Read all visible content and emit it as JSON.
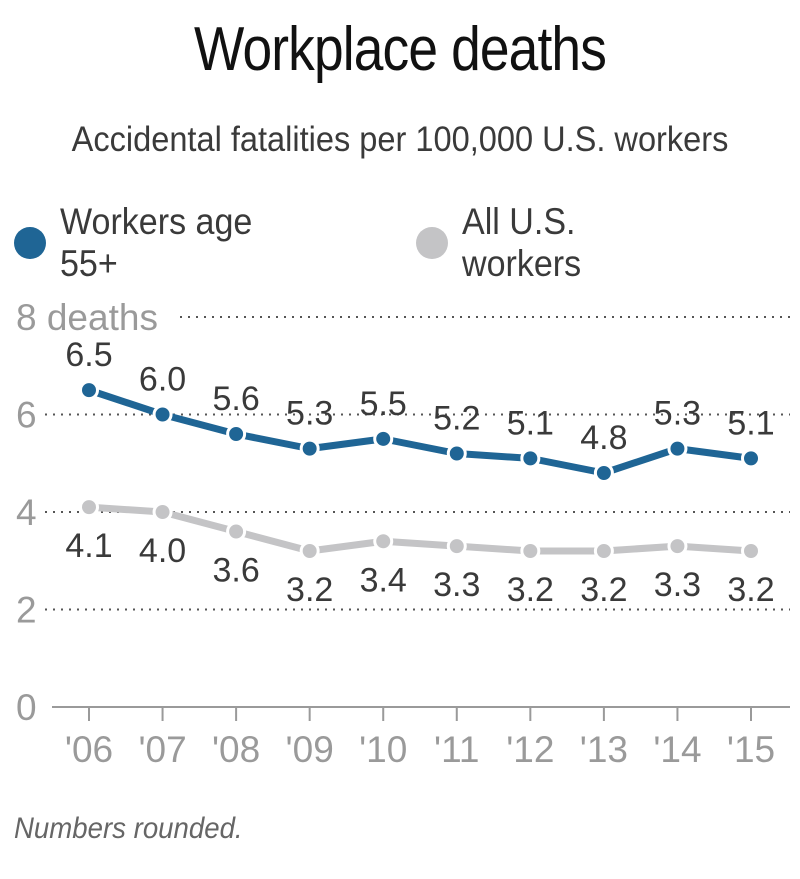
{
  "chart_data": {
    "type": "line",
    "title": "Workplace deaths",
    "subtitle": "Accidental fatalities per 100,000 U.S. workers",
    "categories": [
      "'06",
      "'07",
      "'08",
      "'09",
      "'10",
      "'11",
      "'12",
      "'13",
      "'14",
      "'15"
    ],
    "series": [
      {
        "name": "Workers age 55+",
        "color": "#1f6595",
        "values": [
          6.5,
          6.0,
          5.6,
          5.3,
          5.5,
          5.2,
          5.1,
          4.8,
          5.3,
          5.1
        ],
        "labels": [
          "6.5",
          "6.0",
          "5.6",
          "5.3",
          "5.5",
          "5.2",
          "5.1",
          "4.8",
          "5.3",
          "5.1"
        ]
      },
      {
        "name": "All U.S. workers",
        "color": "#c4c4c6",
        "values": [
          4.1,
          4.0,
          3.6,
          3.2,
          3.4,
          3.3,
          3.2,
          3.2,
          3.3,
          3.2
        ],
        "labels": [
          "4.1",
          "4.0",
          "3.6",
          "3.2",
          "3.4",
          "3.3",
          "3.2",
          "3.2",
          "3.3",
          "3.2"
        ]
      }
    ],
    "y_ticks": [
      {
        "value": 0,
        "label": "0"
      },
      {
        "value": 2,
        "label": "2"
      },
      {
        "value": 4,
        "label": "4"
      },
      {
        "value": 6,
        "label": "6"
      },
      {
        "value": 8,
        "label": "8 deaths"
      }
    ],
    "ylim": [
      0,
      8
    ],
    "grid": true,
    "legend_position": "top",
    "footnote": "Numbers rounded."
  }
}
